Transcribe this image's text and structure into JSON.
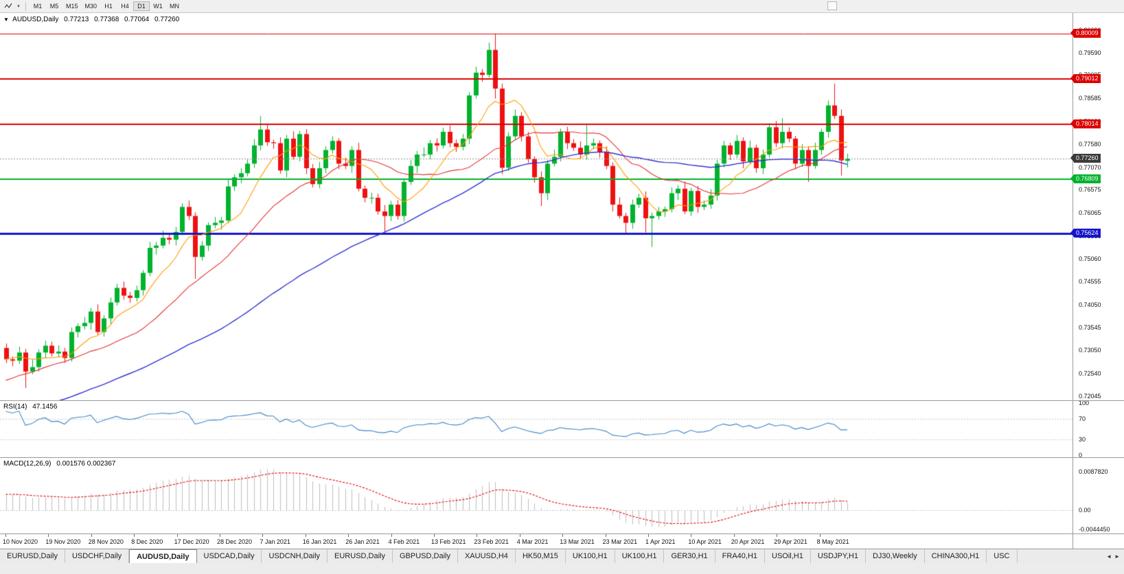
{
  "toolbar": {
    "caret": "▾",
    "timeframes": [
      "M1",
      "M5",
      "M15",
      "M30",
      "H1",
      "H4",
      "D1",
      "W1",
      "MN"
    ],
    "active_timeframe": "D1"
  },
  "chart_header": {
    "dropdown_marker": "▼",
    "symbol": "AUDUSD,Daily",
    "open": "0.77213",
    "high": "0.77368",
    "low": "0.77064",
    "close": "0.77260"
  },
  "tab_bar": {
    "scroll_left_icon": "◄",
    "scroll_right_icon": "►",
    "tabs": [
      {
        "label": "EURUSD,Daily",
        "active": false
      },
      {
        "label": "USDCHF,Daily",
        "active": false
      },
      {
        "label": "AUDUSD,Daily",
        "active": true
      },
      {
        "label": "USDCAD,Daily",
        "active": false
      },
      {
        "label": "USDCNH,Daily",
        "active": false
      },
      {
        "label": "EURUSD,Daily",
        "active": false
      },
      {
        "label": "GBPUSD,Daily",
        "active": false
      },
      {
        "label": "XAUUSD,H4",
        "active": false
      },
      {
        "label": "HK50,M15",
        "active": false
      },
      {
        "label": "UK100,H1",
        "active": false
      },
      {
        "label": "UK100,H1",
        "active": false
      },
      {
        "label": "GER30,H1",
        "active": false
      },
      {
        "label": "FRA40,H1",
        "active": false
      },
      {
        "label": "USOil,H1",
        "active": false
      },
      {
        "label": "USDJPY,H1",
        "active": false
      },
      {
        "label": "DJ30,Weekly",
        "active": false
      },
      {
        "label": "CHINA300,H1",
        "active": false
      },
      {
        "label": "USC",
        "active": false
      }
    ]
  },
  "chart_data": [
    {
      "type": "candlestick",
      "title": "AUDUSD,Daily",
      "first_candle_date": "2020-11-10",
      "y_range": [
        0.7195,
        0.8046
      ],
      "up_color": "#00b22d",
      "down_color": "#ee1111",
      "y_axis_labels": [
        "0.80090",
        "0.79590",
        "0.79095",
        "0.78585",
        "0.78080",
        "0.77580",
        "0.77070",
        "0.76575",
        "0.76065",
        "0.75560",
        "0.75060",
        "0.74555",
        "0.74050",
        "0.73545",
        "0.73050",
        "0.72540",
        "0.72045"
      ],
      "x_ticks": [
        "10 Nov 2020",
        "19 Nov 2020",
        "28 Nov 2020",
        "8 Dec 2020",
        "17 Dec 2020",
        "28 Dec 2020",
        "7 Jan 2021",
        "16 Jan 2021",
        "26 Jan 2021",
        "4 Feb 2021",
        "13 Feb 2021",
        "23 Feb 2021",
        "4 Mar 2021",
        "13 Mar 2021",
        "23 Mar 2021",
        "1 Apr 2021",
        "10 Apr 2021",
        "20 Apr 2021",
        "29 Apr 2021",
        "8 May 2021"
      ],
      "hlines": [
        {
          "price": 0.80009,
          "label": "0.80009",
          "color": "#dd0000",
          "width": 1
        },
        {
          "price": 0.79012,
          "label": "0.79012",
          "color": "#dd0000",
          "width": 2
        },
        {
          "price": 0.78014,
          "label": "0.78014",
          "color": "#dd0000",
          "width": 2
        },
        {
          "price": 0.76809,
          "label": "0.76809",
          "color": "#00b22d",
          "width": 2
        },
        {
          "price": 0.75624,
          "label": "0.75624",
          "color": "#1414cc",
          "width": 3
        }
      ],
      "current_price": {
        "price": 0.7726,
        "label": "0.77260",
        "box_color": "#3a3a3a",
        "line_color": "#909090"
      },
      "moving_averages": [
        {
          "period": 8,
          "color": "#ff9c00"
        },
        {
          "period": 21,
          "color": "#e03232"
        },
        {
          "period": 55,
          "color": "#3030d0"
        }
      ],
      "ma_warmup_closes": [
        0.7,
        0.70097,
        0.70192,
        0.7028,
        0.7036,
        0.7043,
        0.70488,
        0.70533,
        0.70566,
        0.70588,
        0.706,
        0.70604,
        0.70604,
        0.70603,
        0.70602,
        0.70606,
        0.70617,
        0.70638,
        0.70668,
        0.70712,
        0.70768,
        0.70837,
        0.70916,
        0.71004,
        0.71096,
        0.71193,
        0.71291,
        0.71386,
        0.71476,
        0.71556,
        0.71628,
        0.71687,
        0.71734,
        0.71769,
        0.71792,
        0.71806,
        0.71812,
        0.71813,
        0.71812,
        0.71808,
        0.71811,
        0.71821,
        0.7184,
        0.7187,
        0.71912,
        0.71967,
        0.72033,
        0.72111,
        0.72197,
        0.7229,
        0.72387,
        0.72485,
        0.72581,
        0.72671,
        0.72754,
        0.72826,
        0.72886,
        0.72934,
        0.72968,
        0.7299
      ],
      "candles": [
        [
          0.731,
          0.732,
          0.7277,
          0.7285
        ],
        [
          0.7285,
          0.7291,
          0.727,
          0.7282
        ],
        [
          0.7282,
          0.7313,
          0.7275,
          0.73
        ],
        [
          0.73,
          0.7308,
          0.7222,
          0.7258
        ],
        [
          0.7258,
          0.7284,
          0.7252,
          0.7268
        ],
        [
          0.7268,
          0.7307,
          0.7258,
          0.73
        ],
        [
          0.73,
          0.7326,
          0.7287,
          0.7315
        ],
        [
          0.7315,
          0.7324,
          0.7291,
          0.7298
        ],
        [
          0.7298,
          0.7316,
          0.7289,
          0.7302
        ],
        [
          0.7302,
          0.731,
          0.7277,
          0.7288
        ],
        [
          0.7288,
          0.7355,
          0.728,
          0.7345
        ],
        [
          0.7345,
          0.7364,
          0.7333,
          0.7358
        ],
        [
          0.7358,
          0.7378,
          0.7351,
          0.7365
        ],
        [
          0.7365,
          0.7398,
          0.735,
          0.739
        ],
        [
          0.739,
          0.7406,
          0.7339,
          0.7345
        ],
        [
          0.7345,
          0.7382,
          0.7335,
          0.7375
        ],
        [
          0.7375,
          0.7421,
          0.7362,
          0.741
        ],
        [
          0.741,
          0.7451,
          0.7403,
          0.7442
        ],
        [
          0.7442,
          0.7456,
          0.7416,
          0.7425
        ],
        [
          0.7425,
          0.7433,
          0.7409,
          0.742
        ],
        [
          0.742,
          0.7447,
          0.7412,
          0.7437
        ],
        [
          0.7437,
          0.7481,
          0.7425,
          0.7475
        ],
        [
          0.7475,
          0.7543,
          0.7468,
          0.753
        ],
        [
          0.753,
          0.7543,
          0.7515,
          0.7535
        ],
        [
          0.7535,
          0.7568,
          0.7529,
          0.7552
        ],
        [
          0.7552,
          0.7559,
          0.7538,
          0.7548
        ],
        [
          0.7548,
          0.7576,
          0.7535,
          0.7565
        ],
        [
          0.7565,
          0.7628,
          0.7558,
          0.762
        ],
        [
          0.762,
          0.7634,
          0.7591,
          0.76
        ],
        [
          0.76,
          0.7608,
          0.7462,
          0.751
        ],
        [
          0.751,
          0.7545,
          0.7502,
          0.7535
        ],
        [
          0.7535,
          0.7586,
          0.7523,
          0.758
        ],
        [
          0.758,
          0.7598,
          0.7573,
          0.7585
        ],
        [
          0.7585,
          0.7598,
          0.757,
          0.759
        ],
        [
          0.759,
          0.7681,
          0.7584,
          0.7665
        ],
        [
          0.7665,
          0.7692,
          0.7655,
          0.7685
        ],
        [
          0.7685,
          0.7705,
          0.7672,
          0.7694
        ],
        [
          0.7694,
          0.7724,
          0.7687,
          0.7715
        ],
        [
          0.7715,
          0.7769,
          0.7706,
          0.7755
        ],
        [
          0.7755,
          0.782,
          0.7744,
          0.779
        ],
        [
          0.779,
          0.78,
          0.7754,
          0.7762
        ],
        [
          0.7762,
          0.7768,
          0.7748,
          0.776
        ],
        [
          0.776,
          0.7773,
          0.7693,
          0.77
        ],
        [
          0.77,
          0.7778,
          0.7685,
          0.777
        ],
        [
          0.777,
          0.7786,
          0.7724,
          0.773
        ],
        [
          0.773,
          0.7787,
          0.772,
          0.778
        ],
        [
          0.778,
          0.7791,
          0.7692,
          0.7705
        ],
        [
          0.7705,
          0.7714,
          0.7663,
          0.767
        ],
        [
          0.767,
          0.7719,
          0.7661,
          0.7705
        ],
        [
          0.7705,
          0.7753,
          0.7694,
          0.7745
        ],
        [
          0.7745,
          0.7775,
          0.7737,
          0.7765
        ],
        [
          0.7765,
          0.7771,
          0.7703,
          0.7715
        ],
        [
          0.7715,
          0.7728,
          0.7703,
          0.771
        ],
        [
          0.771,
          0.7753,
          0.7695,
          0.7745
        ],
        [
          0.7745,
          0.7761,
          0.7654,
          0.766
        ],
        [
          0.766,
          0.7667,
          0.763,
          0.764
        ],
        [
          0.764,
          0.7651,
          0.7627,
          0.764
        ],
        [
          0.764,
          0.7649,
          0.7603,
          0.761
        ],
        [
          0.761,
          0.7624,
          0.7565,
          0.76
        ],
        [
          0.76,
          0.7633,
          0.7589,
          0.7625
        ],
        [
          0.7625,
          0.7635,
          0.7592,
          0.76
        ],
        [
          0.76,
          0.7681,
          0.7588,
          0.7675
        ],
        [
          0.7675,
          0.7723,
          0.7668,
          0.771
        ],
        [
          0.771,
          0.7743,
          0.7695,
          0.7735
        ],
        [
          0.7735,
          0.7751,
          0.7729,
          0.7735
        ],
        [
          0.7735,
          0.7767,
          0.7725,
          0.776
        ],
        [
          0.776,
          0.7771,
          0.7742,
          0.7755
        ],
        [
          0.7755,
          0.7794,
          0.7748,
          0.7785
        ],
        [
          0.7785,
          0.7799,
          0.7751,
          0.776
        ],
        [
          0.776,
          0.7768,
          0.7741,
          0.7752
        ],
        [
          0.7752,
          0.778,
          0.7744,
          0.777
        ],
        [
          0.777,
          0.7872,
          0.7758,
          0.7865
        ],
        [
          0.7865,
          0.7928,
          0.7858,
          0.7915
        ],
        [
          0.7915,
          0.7923,
          0.7895,
          0.791
        ],
        [
          0.791,
          0.7981,
          0.7904,
          0.7965
        ],
        [
          0.7965,
          0.8001,
          0.7858,
          0.788
        ],
        [
          0.788,
          0.7891,
          0.7692,
          0.7706
        ],
        [
          0.7706,
          0.7784,
          0.7699,
          0.7775
        ],
        [
          0.7775,
          0.7834,
          0.7766,
          0.782
        ],
        [
          0.782,
          0.7828,
          0.7764,
          0.7775
        ],
        [
          0.7775,
          0.7785,
          0.7717,
          0.7725
        ],
        [
          0.7725,
          0.7731,
          0.7673,
          0.7685
        ],
        [
          0.7685,
          0.7698,
          0.7622,
          0.765
        ],
        [
          0.765,
          0.7723,
          0.7635,
          0.7715
        ],
        [
          0.7715,
          0.7746,
          0.7709,
          0.773
        ],
        [
          0.773,
          0.7792,
          0.772,
          0.7785
        ],
        [
          0.7785,
          0.7796,
          0.7747,
          0.776
        ],
        [
          0.776,
          0.7769,
          0.7743,
          0.775
        ],
        [
          0.775,
          0.7764,
          0.7726,
          0.7735
        ],
        [
          0.7735,
          0.78,
          0.7724,
          0.7755
        ],
        [
          0.7755,
          0.777,
          0.7747,
          0.776
        ],
        [
          0.776,
          0.7766,
          0.7728,
          0.774
        ],
        [
          0.774,
          0.7753,
          0.7703,
          0.771
        ],
        [
          0.771,
          0.7718,
          0.761,
          0.7625
        ],
        [
          0.7625,
          0.7641,
          0.7594,
          0.76
        ],
        [
          0.76,
          0.7607,
          0.756,
          0.7585
        ],
        [
          0.7585,
          0.7636,
          0.7572,
          0.7625
        ],
        [
          0.7625,
          0.7649,
          0.7618,
          0.764
        ],
        [
          0.764,
          0.7654,
          0.7564,
          0.7595
        ],
        [
          0.7595,
          0.7608,
          0.7532,
          0.76
        ],
        [
          0.76,
          0.762,
          0.7592,
          0.761
        ],
        [
          0.761,
          0.7621,
          0.7598,
          0.7615
        ],
        [
          0.7615,
          0.7663,
          0.7608,
          0.765
        ],
        [
          0.765,
          0.7668,
          0.7635,
          0.766
        ],
        [
          0.766,
          0.7676,
          0.7604,
          0.761
        ],
        [
          0.761,
          0.7662,
          0.76,
          0.7655
        ],
        [
          0.7655,
          0.7666,
          0.7607,
          0.762
        ],
        [
          0.762,
          0.7634,
          0.7613,
          0.7625
        ],
        [
          0.7625,
          0.7659,
          0.7616,
          0.7645
        ],
        [
          0.7645,
          0.7723,
          0.7634,
          0.7715
        ],
        [
          0.7715,
          0.7765,
          0.7707,
          0.7755
        ],
        [
          0.7755,
          0.7761,
          0.7723,
          0.7735
        ],
        [
          0.7735,
          0.7778,
          0.7728,
          0.7765
        ],
        [
          0.7765,
          0.7773,
          0.7705,
          0.772
        ],
        [
          0.772,
          0.7766,
          0.7714,
          0.775
        ],
        [
          0.775,
          0.7757,
          0.7695,
          0.7705
        ],
        [
          0.7705,
          0.7746,
          0.7692,
          0.7735
        ],
        [
          0.7735,
          0.7804,
          0.7728,
          0.7795
        ],
        [
          0.7795,
          0.7809,
          0.7751,
          0.776
        ],
        [
          0.776,
          0.7815,
          0.7749,
          0.7785
        ],
        [
          0.7785,
          0.7795,
          0.7762,
          0.777
        ],
        [
          0.777,
          0.7776,
          0.7703,
          0.7715
        ],
        [
          0.7715,
          0.7758,
          0.7708,
          0.7745
        ],
        [
          0.7745,
          0.7753,
          0.7675,
          0.771
        ],
        [
          0.771,
          0.7761,
          0.7704,
          0.7745
        ],
        [
          0.7745,
          0.7792,
          0.7735,
          0.7785
        ],
        [
          0.7785,
          0.7854,
          0.7772,
          0.7843
        ],
        [
          0.7843,
          0.7891,
          0.7813,
          0.782
        ],
        [
          0.782,
          0.7834,
          0.7689,
          0.7722
        ],
        [
          0.77213,
          0.77368,
          0.77064,
          0.7726
        ]
      ]
    },
    {
      "type": "line",
      "indicator": "RSI",
      "period": 14,
      "title": "RSI(14)",
      "value": "47.1456",
      "y_range": [
        0,
        100
      ],
      "levels": [
        70,
        30
      ],
      "axis_labels": [
        "100",
        "70",
        "30",
        "0"
      ],
      "color": "#3d85c6"
    },
    {
      "type": "macd",
      "indicator": "MACD",
      "params": [
        12,
        26,
        9
      ],
      "title": "MACD(12,26,9)",
      "values_text": "0.001576 0.002367",
      "y_range": [
        -0.004445,
        0.008782
      ],
      "axis_labels": [
        "0.0087820",
        "0.00",
        "-0.0044450"
      ],
      "histogram_color": "#bdbdbd",
      "signal_color": "#e00000"
    }
  ]
}
